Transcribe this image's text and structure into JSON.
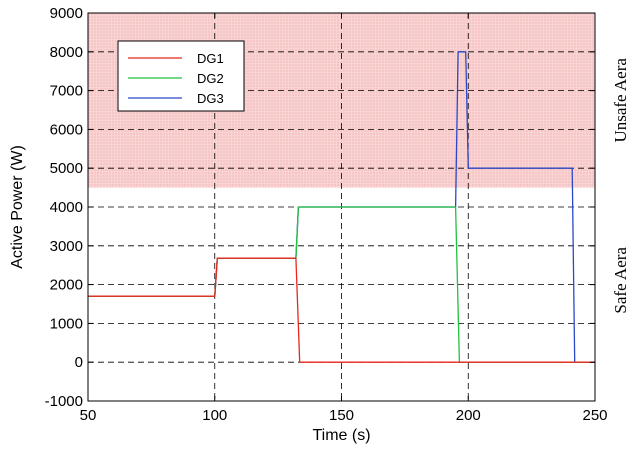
{
  "chart_data": {
    "type": "line",
    "xlabel": "Time (s)",
    "ylabel": "Active Power (W)",
    "xlim": [
      50,
      250
    ],
    "ylim": [
      -1000,
      9000
    ],
    "xticks": [
      50,
      100,
      150,
      200,
      250
    ],
    "yticks": [
      -1000,
      0,
      1000,
      2000,
      3000,
      4000,
      5000,
      6000,
      7000,
      8000,
      9000
    ],
    "grid": true,
    "grid_style": "dashed",
    "legend_position": "top-left",
    "regions": [
      {
        "name": "Unsafe Aera",
        "y_range": [
          4500,
          9000
        ],
        "color": "#f7c6c6"
      },
      {
        "name": "Safe Aera",
        "y_range": [
          -1000,
          4500
        ],
        "color": "#ffffff"
      }
    ],
    "series": [
      {
        "name": "DG1",
        "color": "#e8281c",
        "points": [
          [
            50,
            1700
          ],
          [
            100,
            1700
          ],
          [
            101,
            2680
          ],
          [
            132,
            2680
          ],
          [
            133.5,
            0
          ],
          [
            250,
            0
          ]
        ]
      },
      {
        "name": "DG2",
        "color": "#22c040",
        "points": [
          [
            50,
            1700
          ],
          [
            100,
            1700
          ],
          [
            101,
            2680
          ],
          [
            132,
            2680
          ],
          [
            133,
            4000
          ],
          [
            195,
            4000
          ],
          [
            196.5,
            0
          ],
          [
            250,
            0
          ]
        ]
      },
      {
        "name": "DG3",
        "color": "#2a48c8",
        "points": [
          [
            50,
            1700
          ],
          [
            100,
            1700
          ],
          [
            101,
            2680
          ],
          [
            132,
            2680
          ],
          [
            133,
            4000
          ],
          [
            195,
            4000
          ],
          [
            196,
            8000
          ],
          [
            199,
            8000
          ],
          [
            200,
            5000
          ],
          [
            241,
            5000
          ],
          [
            242,
            0
          ],
          [
            250,
            0
          ]
        ]
      }
    ]
  }
}
